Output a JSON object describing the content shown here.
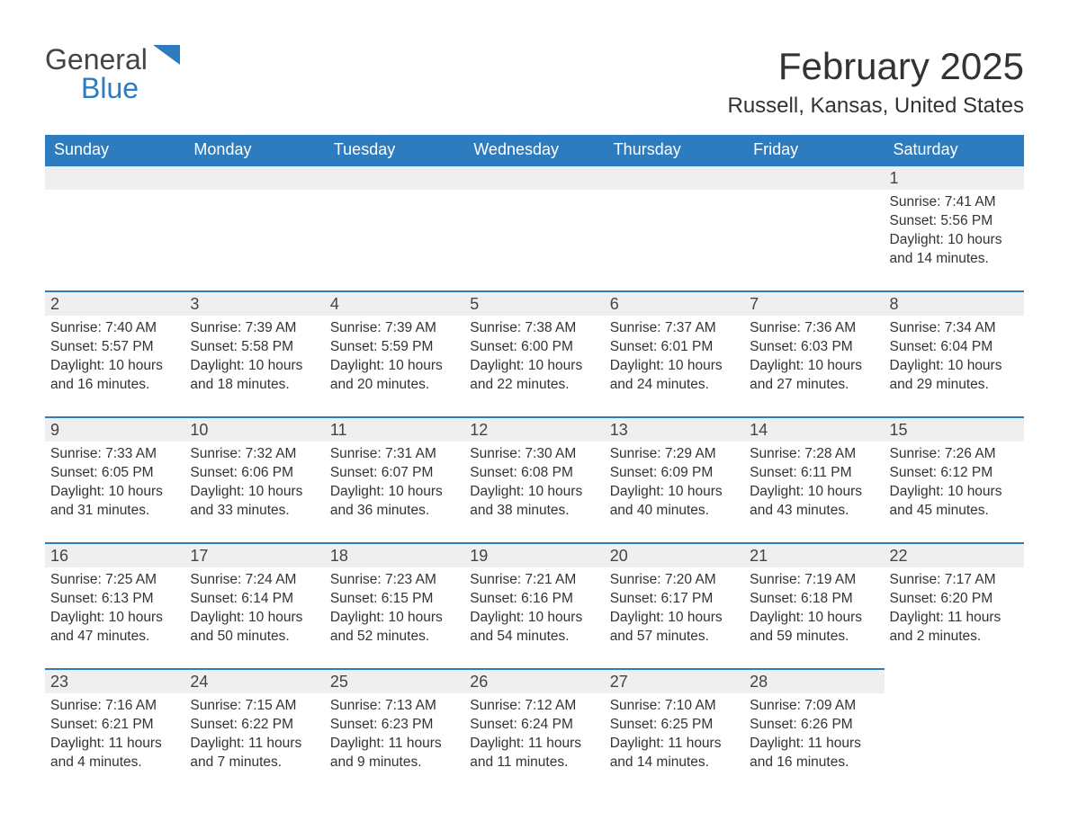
{
  "logo": {
    "word1": "General",
    "word2": "Blue"
  },
  "colors": {
    "header_bg": "#2d7cc0",
    "header_text": "#ffffff",
    "band_bg": "#efefef",
    "row_border": "#2d7cc0",
    "text": "#333333",
    "logo_dark": "#444444",
    "logo_blue": "#2d7cc0",
    "page_bg": "#ffffff"
  },
  "typography": {
    "month_title_size": 42,
    "location_size": 24,
    "dayheader_size": 18,
    "daynum_size": 18,
    "body_size": 15.5
  },
  "title": "February 2025",
  "location": "Russell, Kansas, United States",
  "day_headers": [
    "Sunday",
    "Monday",
    "Tuesday",
    "Wednesday",
    "Thursday",
    "Friday",
    "Saturday"
  ],
  "weeks": [
    [
      null,
      null,
      null,
      null,
      null,
      null,
      {
        "n": "1",
        "sr": "Sunrise: 7:41 AM",
        "ss": "Sunset: 5:56 PM",
        "dl1": "Daylight: 10 hours",
        "dl2": "and 14 minutes."
      }
    ],
    [
      {
        "n": "2",
        "sr": "Sunrise: 7:40 AM",
        "ss": "Sunset: 5:57 PM",
        "dl1": "Daylight: 10 hours",
        "dl2": "and 16 minutes."
      },
      {
        "n": "3",
        "sr": "Sunrise: 7:39 AM",
        "ss": "Sunset: 5:58 PM",
        "dl1": "Daylight: 10 hours",
        "dl2": "and 18 minutes."
      },
      {
        "n": "4",
        "sr": "Sunrise: 7:39 AM",
        "ss": "Sunset: 5:59 PM",
        "dl1": "Daylight: 10 hours",
        "dl2": "and 20 minutes."
      },
      {
        "n": "5",
        "sr": "Sunrise: 7:38 AM",
        "ss": "Sunset: 6:00 PM",
        "dl1": "Daylight: 10 hours",
        "dl2": "and 22 minutes."
      },
      {
        "n": "6",
        "sr": "Sunrise: 7:37 AM",
        "ss": "Sunset: 6:01 PM",
        "dl1": "Daylight: 10 hours",
        "dl2": "and 24 minutes."
      },
      {
        "n": "7",
        "sr": "Sunrise: 7:36 AM",
        "ss": "Sunset: 6:03 PM",
        "dl1": "Daylight: 10 hours",
        "dl2": "and 27 minutes."
      },
      {
        "n": "8",
        "sr": "Sunrise: 7:34 AM",
        "ss": "Sunset: 6:04 PM",
        "dl1": "Daylight: 10 hours",
        "dl2": "and 29 minutes."
      }
    ],
    [
      {
        "n": "9",
        "sr": "Sunrise: 7:33 AM",
        "ss": "Sunset: 6:05 PM",
        "dl1": "Daylight: 10 hours",
        "dl2": "and 31 minutes."
      },
      {
        "n": "10",
        "sr": "Sunrise: 7:32 AM",
        "ss": "Sunset: 6:06 PM",
        "dl1": "Daylight: 10 hours",
        "dl2": "and 33 minutes."
      },
      {
        "n": "11",
        "sr": "Sunrise: 7:31 AM",
        "ss": "Sunset: 6:07 PM",
        "dl1": "Daylight: 10 hours",
        "dl2": "and 36 minutes."
      },
      {
        "n": "12",
        "sr": "Sunrise: 7:30 AM",
        "ss": "Sunset: 6:08 PM",
        "dl1": "Daylight: 10 hours",
        "dl2": "and 38 minutes."
      },
      {
        "n": "13",
        "sr": "Sunrise: 7:29 AM",
        "ss": "Sunset: 6:09 PM",
        "dl1": "Daylight: 10 hours",
        "dl2": "and 40 minutes."
      },
      {
        "n": "14",
        "sr": "Sunrise: 7:28 AM",
        "ss": "Sunset: 6:11 PM",
        "dl1": "Daylight: 10 hours",
        "dl2": "and 43 minutes."
      },
      {
        "n": "15",
        "sr": "Sunrise: 7:26 AM",
        "ss": "Sunset: 6:12 PM",
        "dl1": "Daylight: 10 hours",
        "dl2": "and 45 minutes."
      }
    ],
    [
      {
        "n": "16",
        "sr": "Sunrise: 7:25 AM",
        "ss": "Sunset: 6:13 PM",
        "dl1": "Daylight: 10 hours",
        "dl2": "and 47 minutes."
      },
      {
        "n": "17",
        "sr": "Sunrise: 7:24 AM",
        "ss": "Sunset: 6:14 PM",
        "dl1": "Daylight: 10 hours",
        "dl2": "and 50 minutes."
      },
      {
        "n": "18",
        "sr": "Sunrise: 7:23 AM",
        "ss": "Sunset: 6:15 PM",
        "dl1": "Daylight: 10 hours",
        "dl2": "and 52 minutes."
      },
      {
        "n": "19",
        "sr": "Sunrise: 7:21 AM",
        "ss": "Sunset: 6:16 PM",
        "dl1": "Daylight: 10 hours",
        "dl2": "and 54 minutes."
      },
      {
        "n": "20",
        "sr": "Sunrise: 7:20 AM",
        "ss": "Sunset: 6:17 PM",
        "dl1": "Daylight: 10 hours",
        "dl2": "and 57 minutes."
      },
      {
        "n": "21",
        "sr": "Sunrise: 7:19 AM",
        "ss": "Sunset: 6:18 PM",
        "dl1": "Daylight: 10 hours",
        "dl2": "and 59 minutes."
      },
      {
        "n": "22",
        "sr": "Sunrise: 7:17 AM",
        "ss": "Sunset: 6:20 PM",
        "dl1": "Daylight: 11 hours",
        "dl2": "and 2 minutes."
      }
    ],
    [
      {
        "n": "23",
        "sr": "Sunrise: 7:16 AM",
        "ss": "Sunset: 6:21 PM",
        "dl1": "Daylight: 11 hours",
        "dl2": "and 4 minutes."
      },
      {
        "n": "24",
        "sr": "Sunrise: 7:15 AM",
        "ss": "Sunset: 6:22 PM",
        "dl1": "Daylight: 11 hours",
        "dl2": "and 7 minutes."
      },
      {
        "n": "25",
        "sr": "Sunrise: 7:13 AM",
        "ss": "Sunset: 6:23 PM",
        "dl1": "Daylight: 11 hours",
        "dl2": "and 9 minutes."
      },
      {
        "n": "26",
        "sr": "Sunrise: 7:12 AM",
        "ss": "Sunset: 6:24 PM",
        "dl1": "Daylight: 11 hours",
        "dl2": "and 11 minutes."
      },
      {
        "n": "27",
        "sr": "Sunrise: 7:10 AM",
        "ss": "Sunset: 6:25 PM",
        "dl1": "Daylight: 11 hours",
        "dl2": "and 14 minutes."
      },
      {
        "n": "28",
        "sr": "Sunrise: 7:09 AM",
        "ss": "Sunset: 6:26 PM",
        "dl1": "Daylight: 11 hours",
        "dl2": "and 16 minutes."
      },
      null
    ]
  ]
}
